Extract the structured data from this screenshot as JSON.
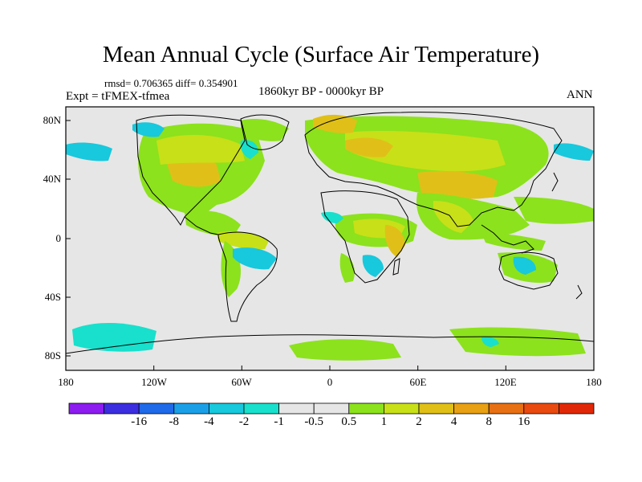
{
  "figure": {
    "title": "Mean Annual Cycle (Surface Air Temperature)",
    "stats": "rmsd= 0.706365 diff= 0.354901",
    "period": "1860kyr BP - 0000kyr BP",
    "experiment": "Expt = tFMEX-tfmea",
    "season": "ANN"
  },
  "axes": {
    "x_ticks": [
      "180",
      "120W",
      "60W",
      "0",
      "60E",
      "120E",
      "180"
    ],
    "y_ticks": [
      "80N",
      "40N",
      "0",
      "40S",
      "80S"
    ]
  },
  "colorbar": {
    "colors": [
      "#8c1cf0",
      "#3a2ee0",
      "#1f6ae8",
      "#1ba0e8",
      "#18c8dc",
      "#18e0cc",
      "#e6e6e6",
      "#e6e6e6",
      "#8ce21c",
      "#c8e018",
      "#e0c018",
      "#e8a014",
      "#e87014",
      "#e84a10",
      "#e02808"
    ],
    "labels": [
      "-16",
      "-8",
      "-4",
      "-2",
      "-1",
      "-0.5",
      "0.5",
      "1",
      "2",
      "4",
      "8",
      "16"
    ]
  },
  "map_colors": {
    "background": "#e6e6e6",
    "weak_warm": "#8ce21c",
    "mid_warm": "#c8e018",
    "strong_warm": "#e0c018",
    "weak_cool": "#18e0cc",
    "cool": "#18c8dc"
  }
}
